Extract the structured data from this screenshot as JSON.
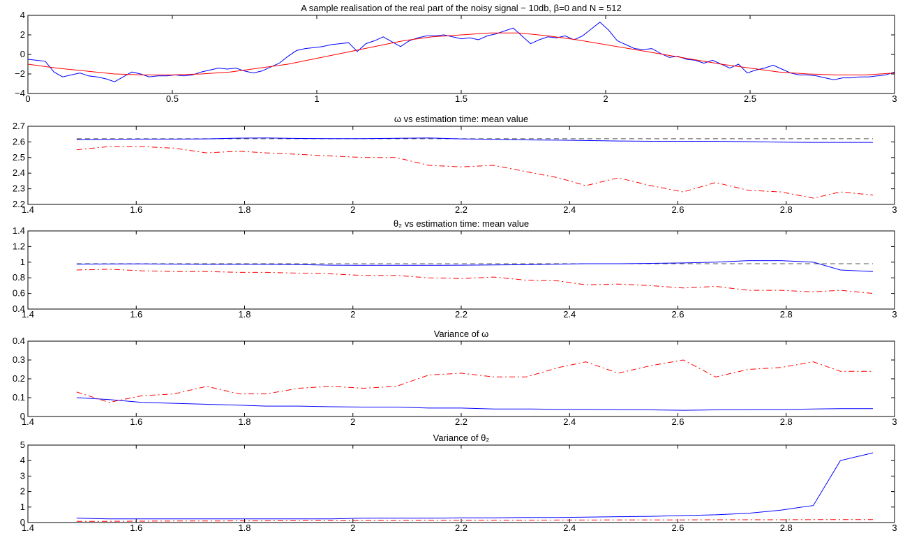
{
  "chart_data": [
    {
      "type": "line",
      "title": "A sample realisation of the real part of the noisy signal − 10db, β=0 and N = 512",
      "xlabel": "",
      "ylabel": "",
      "xlim": [
        0,
        3
      ],
      "ylim": [
        -4,
        4
      ],
      "xticks": [
        0,
        0.5,
        1,
        1.5,
        2,
        2.5,
        3
      ],
      "xtick_labels": [
        "0",
        "0.5",
        "1",
        "1.5",
        "2",
        "2.5",
        "3"
      ],
      "yticks": [
        -4,
        -2,
        0,
        2,
        4
      ],
      "ytick_labels": [
        "−4",
        "−2",
        "0",
        "2",
        "4"
      ],
      "grid": false,
      "colors": {
        "noisy": "#0000ff",
        "clean": "#ff0000"
      },
      "series": [
        {
          "color": "#0000ff",
          "style": "solid",
          "x": [
            0,
            0.03,
            0.06,
            0.09,
            0.12,
            0.15,
            0.18,
            0.21,
            0.24,
            0.27,
            0.3,
            0.33,
            0.36,
            0.39,
            0.42,
            0.45,
            0.48,
            0.51,
            0.54,
            0.57,
            0.6,
            0.63,
            0.66,
            0.69,
            0.72,
            0.75,
            0.78,
            0.81,
            0.84,
            0.87,
            0.9,
            0.93,
            0.96,
            0.99,
            1.02,
            1.05,
            1.08,
            1.11,
            1.14,
            1.17,
            1.2,
            1.23,
            1.26,
            1.29,
            1.32,
            1.35,
            1.38,
            1.41,
            1.44,
            1.47,
            1.5,
            1.53,
            1.56,
            1.59,
            1.62,
            1.65,
            1.68,
            1.71,
            1.74,
            1.77,
            1.8,
            1.83,
            1.86,
            1.89,
            1.92,
            1.95,
            1.98,
            2.01,
            2.04,
            2.07,
            2.1,
            2.13,
            2.16,
            2.19,
            2.22,
            2.25,
            2.28,
            2.31,
            2.34,
            2.37,
            2.4,
            2.43,
            2.46,
            2.49,
            2.52,
            2.55,
            2.58,
            2.61,
            2.64,
            2.67,
            2.7,
            2.73,
            2.76,
            2.79,
            2.82,
            2.85,
            2.88,
            2.91,
            2.94,
            2.97,
            3.0
          ],
          "y": [
            -0.5,
            -0.6,
            -0.7,
            -1.8,
            -2.3,
            -2.1,
            -1.9,
            -2.2,
            -2.3,
            -2.5,
            -2.8,
            -2.3,
            -1.8,
            -2.0,
            -2.3,
            -2.2,
            -2.2,
            -2.1,
            -2.2,
            -2.1,
            -1.8,
            -1.6,
            -1.4,
            -1.5,
            -1.4,
            -1.7,
            -1.9,
            -1.7,
            -1.3,
            -0.9,
            -0.2,
            0.4,
            0.6,
            0.7,
            0.8,
            1.0,
            1.1,
            1.2,
            0.3,
            1.1,
            1.4,
            1.8,
            1.3,
            0.8,
            1.4,
            1.7,
            1.9,
            1.9,
            2.0,
            1.8,
            1.6,
            1.7,
            1.5,
            1.9,
            2.1,
            2.4,
            2.7,
            1.9,
            1.1,
            1.5,
            1.8,
            1.7,
            1.9,
            1.5,
            1.9,
            2.6,
            3.3,
            2.5,
            1.4,
            1.0,
            0.6,
            0.5,
            0.6,
            0.1,
            -0.3,
            -0.2,
            -0.5,
            -0.6,
            -0.9,
            -0.6,
            -1.0,
            -1.4,
            -1.0,
            -1.9,
            -1.6,
            -1.4,
            -1.1,
            -1.5,
            -1.9,
            -2.1,
            -2.1,
            -2.2,
            -2.4,
            -2.6,
            -2.4,
            -2.4,
            -2.3,
            -2.3,
            -2.2,
            -2.1,
            -1.8
          ]
        },
        {
          "color": "#ff0000",
          "style": "solid",
          "x": [
            0,
            0.1,
            0.2,
            0.3,
            0.4,
            0.5,
            0.6,
            0.7,
            0.8,
            0.9,
            1.0,
            1.1,
            1.2,
            1.3,
            1.4,
            1.5,
            1.6,
            1.7,
            1.8,
            1.9,
            2.0,
            2.1,
            2.2,
            2.3,
            2.4,
            2.5,
            2.6,
            2.7,
            2.8,
            2.9,
            3.0
          ],
          "y": [
            -1.0,
            -1.4,
            -1.7,
            -2.0,
            -2.1,
            -2.1,
            -2.0,
            -1.8,
            -1.4,
            -1.0,
            -0.4,
            0.2,
            0.8,
            1.4,
            1.8,
            2.0,
            2.2,
            2.2,
            1.9,
            1.5,
            1.0,
            0.5,
            0.0,
            -0.5,
            -1.0,
            -1.4,
            -1.8,
            -2.0,
            -2.1,
            -2.1,
            -1.9
          ]
        }
      ]
    },
    {
      "type": "line",
      "title": "ω vs estimation time: mean value",
      "xlabel": "",
      "ylabel": "",
      "xlim": [
        1.4,
        3
      ],
      "ylim": [
        2.2,
        2.7
      ],
      "xticks": [
        1.4,
        1.6,
        1.8,
        2,
        2.2,
        2.4,
        2.6,
        2.8,
        3
      ],
      "xtick_labels": [
        "1.4",
        "1.6",
        "1.8",
        "2",
        "2.2",
        "2.4",
        "2.6",
        "2.8",
        "3"
      ],
      "yticks": [
        2.2,
        2.3,
        2.4,
        2.5,
        2.6,
        2.7
      ],
      "ytick_labels": [
        "2.2",
        "2.3",
        "2.4",
        "2.5",
        "2.6",
        "2.7"
      ],
      "grid": false,
      "series": [
        {
          "color": "#555555",
          "style": "dashed",
          "x": [
            1.49,
            2.96
          ],
          "y": [
            2.62,
            2.62
          ]
        },
        {
          "color": "#0000ff",
          "style": "solid",
          "x": [
            1.49,
            1.55,
            1.61,
            1.67,
            1.73,
            1.79,
            1.84,
            1.9,
            1.96,
            2.02,
            2.08,
            2.14,
            2.2,
            2.26,
            2.32,
            2.38,
            2.43,
            2.49,
            2.55,
            2.61,
            2.67,
            2.73,
            2.79,
            2.85,
            2.9,
            2.96
          ],
          "y": [
            2.615,
            2.617,
            2.618,
            2.618,
            2.619,
            2.624,
            2.625,
            2.622,
            2.621,
            2.621,
            2.623,
            2.625,
            2.619,
            2.617,
            2.613,
            2.611,
            2.609,
            2.606,
            2.604,
            2.604,
            2.604,
            2.602,
            2.598,
            2.597,
            2.597,
            2.597
          ]
        },
        {
          "color": "#ff0000",
          "style": "dashdot",
          "x": [
            1.49,
            1.55,
            1.61,
            1.67,
            1.73,
            1.79,
            1.84,
            1.9,
            1.96,
            2.02,
            2.08,
            2.14,
            2.2,
            2.26,
            2.32,
            2.38,
            2.43,
            2.49,
            2.55,
            2.61,
            2.67,
            2.73,
            2.79,
            2.85,
            2.9,
            2.96
          ],
          "y": [
            2.55,
            2.57,
            2.57,
            2.56,
            2.53,
            2.54,
            2.53,
            2.52,
            2.51,
            2.5,
            2.5,
            2.45,
            2.44,
            2.45,
            2.41,
            2.37,
            2.32,
            2.37,
            2.32,
            2.28,
            2.34,
            2.29,
            2.28,
            2.24,
            2.28,
            2.26
          ]
        }
      ]
    },
    {
      "type": "line",
      "title": "θ₂ vs estimation time: mean value",
      "xlabel": "",
      "ylabel": "",
      "xlim": [
        1.4,
        3
      ],
      "ylim": [
        0.4,
        1.4
      ],
      "xticks": [
        1.4,
        1.6,
        1.8,
        2,
        2.2,
        2.4,
        2.6,
        2.8,
        3
      ],
      "xtick_labels": [
        "1.4",
        "1.6",
        "1.8",
        "2",
        "2.2",
        "2.4",
        "2.6",
        "2.8",
        "3"
      ],
      "yticks": [
        0.4,
        0.6,
        0.8,
        1,
        1.2,
        1.4
      ],
      "ytick_labels": [
        "0.4",
        "0.6",
        "0.8",
        "1",
        "1.2",
        "1.4"
      ],
      "grid": false,
      "series": [
        {
          "color": "#555555",
          "style": "dashed",
          "x": [
            1.49,
            2.96
          ],
          "y": [
            0.98,
            0.98
          ]
        },
        {
          "color": "#0000ff",
          "style": "solid",
          "x": [
            1.49,
            1.55,
            1.61,
            1.67,
            1.73,
            1.79,
            1.84,
            1.9,
            1.96,
            2.02,
            2.08,
            2.14,
            2.2,
            2.26,
            2.32,
            2.38,
            2.43,
            2.49,
            2.55,
            2.61,
            2.67,
            2.73,
            2.79,
            2.85,
            2.9,
            2.96
          ],
          "y": [
            0.975,
            0.977,
            0.978,
            0.975,
            0.972,
            0.972,
            0.972,
            0.97,
            0.962,
            0.96,
            0.96,
            0.96,
            0.962,
            0.965,
            0.968,
            0.975,
            0.98,
            0.98,
            0.985,
            0.99,
            1.0,
            1.02,
            1.02,
            1.0,
            0.9,
            0.88
          ]
        },
        {
          "color": "#ff0000",
          "style": "dashdot",
          "x": [
            1.49,
            1.55,
            1.61,
            1.67,
            1.73,
            1.79,
            1.84,
            1.9,
            1.96,
            2.02,
            2.08,
            2.14,
            2.2,
            2.26,
            2.32,
            2.38,
            2.43,
            2.49,
            2.55,
            2.61,
            2.67,
            2.73,
            2.79,
            2.85,
            2.9,
            2.96
          ],
          "y": [
            0.9,
            0.91,
            0.89,
            0.88,
            0.88,
            0.87,
            0.87,
            0.86,
            0.85,
            0.83,
            0.83,
            0.8,
            0.79,
            0.81,
            0.77,
            0.76,
            0.71,
            0.72,
            0.7,
            0.67,
            0.69,
            0.64,
            0.64,
            0.62,
            0.64,
            0.6
          ]
        }
      ]
    },
    {
      "type": "line",
      "title": "Variance of ω",
      "xlabel": "",
      "ylabel": "",
      "xlim": [
        1.4,
        3
      ],
      "ylim": [
        0,
        0.4
      ],
      "xticks": [
        1.4,
        1.6,
        1.8,
        2,
        2.2,
        2.4,
        2.6,
        2.8,
        3
      ],
      "xtick_labels": [
        "1.4",
        "1.6",
        "1.8",
        "2",
        "2.2",
        "2.4",
        "2.6",
        "2.8",
        "3"
      ],
      "yticks": [
        0,
        0.1,
        0.2,
        0.3,
        0.4
      ],
      "ytick_labels": [
        "0",
        "0.1",
        "0.2",
        "0.3",
        "0.4"
      ],
      "grid": false,
      "series": [
        {
          "color": "#0000ff",
          "style": "solid",
          "x": [
            1.49,
            1.55,
            1.61,
            1.67,
            1.73,
            1.79,
            1.84,
            1.9,
            1.96,
            2.02,
            2.08,
            2.14,
            2.2,
            2.26,
            2.32,
            2.38,
            2.43,
            2.49,
            2.55,
            2.61,
            2.67,
            2.73,
            2.79,
            2.85,
            2.9,
            2.96
          ],
          "y": [
            0.1,
            0.09,
            0.075,
            0.07,
            0.065,
            0.06,
            0.055,
            0.055,
            0.052,
            0.05,
            0.05,
            0.045,
            0.045,
            0.04,
            0.04,
            0.038,
            0.038,
            0.036,
            0.035,
            0.033,
            0.035,
            0.036,
            0.037,
            0.04,
            0.042,
            0.042
          ]
        },
        {
          "color": "#ff0000",
          "style": "dashdot",
          "x": [
            1.49,
            1.55,
            1.61,
            1.67,
            1.73,
            1.79,
            1.84,
            1.9,
            1.96,
            2.02,
            2.08,
            2.14,
            2.2,
            2.26,
            2.32,
            2.38,
            2.43,
            2.49,
            2.55,
            2.61,
            2.67,
            2.73,
            2.79,
            2.85,
            2.9,
            2.96
          ],
          "y": [
            0.13,
            0.075,
            0.11,
            0.12,
            0.16,
            0.12,
            0.12,
            0.15,
            0.16,
            0.15,
            0.16,
            0.22,
            0.23,
            0.21,
            0.21,
            0.26,
            0.29,
            0.23,
            0.27,
            0.3,
            0.21,
            0.25,
            0.26,
            0.29,
            0.24,
            0.24
          ]
        }
      ]
    },
    {
      "type": "line",
      "title": "Variance of θ₂",
      "xlabel": "",
      "ylabel": "",
      "xlim": [
        1.4,
        3
      ],
      "ylim": [
        0,
        5
      ],
      "xticks": [
        1.4,
        1.6,
        1.8,
        2,
        2.2,
        2.4,
        2.6,
        2.8,
        3
      ],
      "xtick_labels": [
        "1.4",
        "1.6",
        "1.8",
        "2",
        "2.2",
        "2.4",
        "2.6",
        "2.8",
        "3"
      ],
      "yticks": [
        0,
        1,
        2,
        3,
        4,
        5
      ],
      "ytick_labels": [
        "0",
        "1",
        "2",
        "3",
        "4",
        "5"
      ],
      "grid": false,
      "series": [
        {
          "color": "#0000ff",
          "style": "solid",
          "x": [
            1.49,
            1.55,
            1.61,
            1.67,
            1.73,
            1.79,
            1.84,
            1.9,
            1.96,
            2.02,
            2.08,
            2.14,
            2.2,
            2.26,
            2.32,
            2.38,
            2.43,
            2.49,
            2.55,
            2.61,
            2.67,
            2.73,
            2.79,
            2.85,
            2.9,
            2.96
          ],
          "y": [
            0.28,
            0.24,
            0.24,
            0.24,
            0.24,
            0.24,
            0.24,
            0.24,
            0.24,
            0.28,
            0.28,
            0.28,
            0.3,
            0.3,
            0.33,
            0.33,
            0.35,
            0.38,
            0.4,
            0.45,
            0.5,
            0.6,
            0.8,
            1.1,
            4.0,
            4.5
          ]
        },
        {
          "color": "#ff0000",
          "style": "dashdot",
          "x": [
            1.49,
            1.55,
            1.61,
            1.67,
            1.73,
            1.79,
            1.84,
            1.9,
            1.96,
            2.02,
            2.08,
            2.14,
            2.2,
            2.26,
            2.32,
            2.38,
            2.43,
            2.49,
            2.55,
            2.61,
            2.67,
            2.73,
            2.79,
            2.85,
            2.9,
            2.96
          ],
          "y": [
            0.08,
            0.08,
            0.09,
            0.1,
            0.1,
            0.11,
            0.11,
            0.12,
            0.12,
            0.13,
            0.13,
            0.14,
            0.14,
            0.15,
            0.15,
            0.16,
            0.16,
            0.17,
            0.17,
            0.17,
            0.18,
            0.18,
            0.18,
            0.19,
            0.19,
            0.19
          ]
        }
      ]
    }
  ]
}
